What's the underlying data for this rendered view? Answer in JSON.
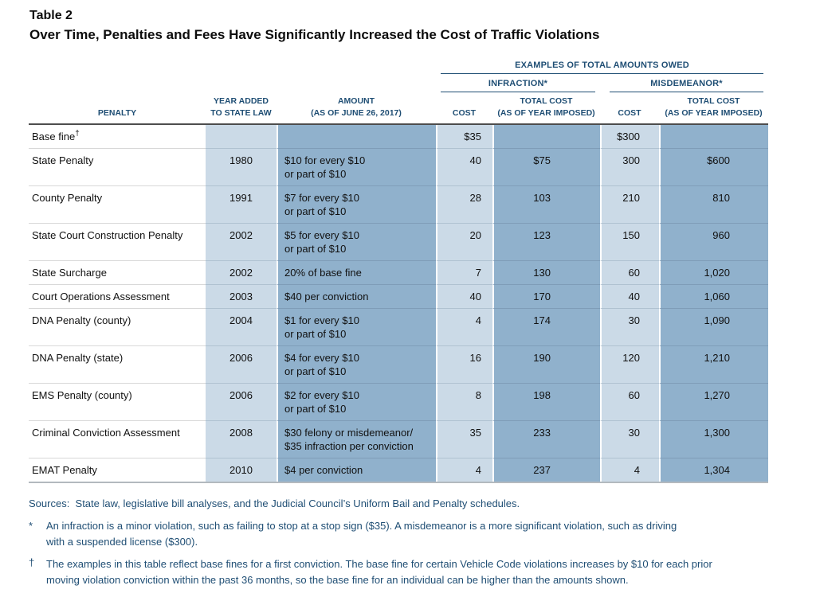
{
  "header": {
    "table_label": "Table 2",
    "title": "Over Time, Penalties and Fees Have Significantly Increased the Cost of Traffic Violations"
  },
  "table": {
    "group_header": "EXAMPLES OF TOTAL AMOUNTS OWED",
    "infraction_header": "INFRACTION*",
    "misdemeanor_header": "MISDEMEANOR*",
    "columns": {
      "penalty": "PENALTY",
      "year": "YEAR ADDED\nTO STATE LAW",
      "amount": "AMOUNT\n(AS OF JUNE 26, 2017)",
      "cost": "COST",
      "total": "TOTAL COST\n(AS OF YEAR IMPOSED)"
    },
    "rows": [
      {
        "penalty": "Base fine",
        "sup": "†",
        "year": "",
        "amount": "",
        "inf_cost": "$35",
        "inf_total": "",
        "mis_cost": "$300",
        "mis_total": ""
      },
      {
        "penalty": "State Penalty",
        "year": "1980",
        "amount": "$10 for every $10\nor part of $10",
        "inf_cost": "40",
        "inf_total": "$75",
        "mis_cost": "300",
        "mis_total": "$600"
      },
      {
        "penalty": "County Penalty",
        "year": "1991",
        "amount": "$7 for every $10\nor part of $10",
        "inf_cost": "28",
        "inf_total": "103",
        "mis_cost": "210",
        "mis_total": "810"
      },
      {
        "penalty": "State Court Construction Penalty",
        "year": "2002",
        "amount": "$5 for every $10\nor part of $10",
        "inf_cost": "20",
        "inf_total": "123",
        "mis_cost": "150",
        "mis_total": "960"
      },
      {
        "penalty": "State Surcharge",
        "year": "2002",
        "amount": "20% of base fine",
        "inf_cost": "7",
        "inf_total": "130",
        "mis_cost": "60",
        "mis_total": "1,020"
      },
      {
        "penalty": "Court Operations Assessment",
        "year": "2003",
        "amount": "$40 per conviction",
        "inf_cost": "40",
        "inf_total": "170",
        "mis_cost": "40",
        "mis_total": "1,060"
      },
      {
        "penalty": "DNA Penalty (county)",
        "year": "2004",
        "amount": "$1 for every $10\nor part of $10",
        "inf_cost": "4",
        "inf_total": "174",
        "mis_cost": "30",
        "mis_total": "1,090"
      },
      {
        "penalty": "DNA Penalty (state)",
        "year": "2006",
        "amount": "$4 for every $10\nor part of $10",
        "inf_cost": "16",
        "inf_total": "190",
        "mis_cost": "120",
        "mis_total": "1,210"
      },
      {
        "penalty": "EMS Penalty (county)",
        "year": "2006",
        "amount": "$2 for every $10\nor part of $10",
        "inf_cost": "8",
        "inf_total": "198",
        "mis_cost": "60",
        "mis_total": "1,270"
      },
      {
        "penalty": "Criminal Conviction Assessment",
        "year": "2008",
        "amount": "$30 felony or misdemeanor/\n$35 infraction per conviction",
        "inf_cost": "35",
        "inf_total": "233",
        "mis_cost": "30",
        "mis_total": "1,300"
      },
      {
        "penalty": "EMAT Penalty",
        "year": "2010",
        "amount": "$4 per conviction",
        "inf_cost": "4",
        "inf_total": "237",
        "mis_cost": "4",
        "mis_total": "1,304"
      }
    ]
  },
  "footnotes": {
    "sources": "Sources:  State law, legislative bill analyses, and the Judicial Council’s Uniform Bail and Penalty schedules.",
    "items": [
      {
        "marker": "*",
        "text": "An infraction is a minor violation, such as failing to stop at a stop sign ($35). A misdemeanor is a more significant violation, such as driving\nwith a suspended license ($300)."
      },
      {
        "marker": "†",
        "text": "The examples in this table reflect base fines for a first conviction. The base fine for certain Vehicle Code violations increases by $10 for each prior\nmoving violation conviction within the past 36 months, so the base fine for an individual can be higher than the amounts shown."
      }
    ]
  },
  "colors": {
    "navy": "#1F4E74",
    "light_blue": "#CBDAE7",
    "medium_blue": "#90B1CC"
  }
}
